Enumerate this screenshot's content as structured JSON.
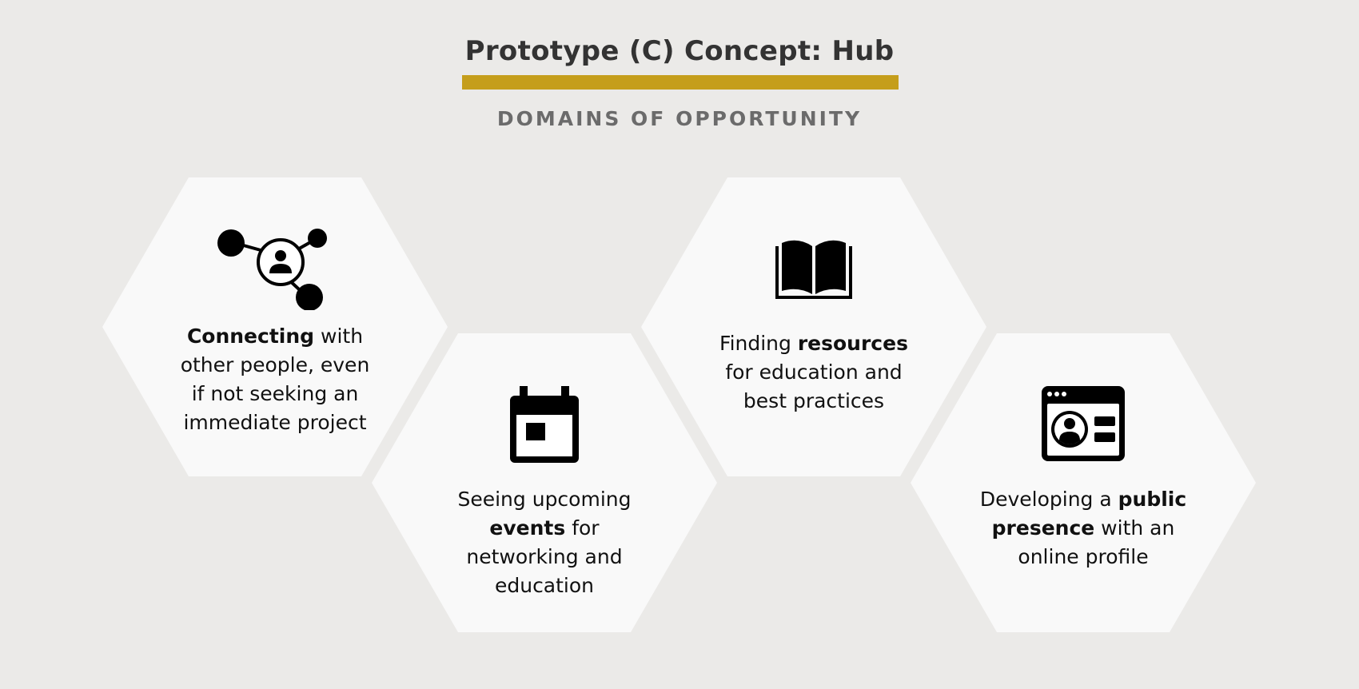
{
  "header": {
    "title": "Prototype (C) Concept: Hub",
    "subtitle": "DOMAINS OF OPPORTUNITY",
    "accent_color": "#c59e1b"
  },
  "domains": [
    {
      "icon": "network-person-icon",
      "pre": "",
      "bold": "Connecting",
      "post": " with other people, even if not seeking an immediate project"
    },
    {
      "icon": "calendar-icon",
      "pre": "Seeing upcoming ",
      "bold": "events",
      "post": " for networking and education"
    },
    {
      "icon": "open-book-icon",
      "pre": "Finding ",
      "bold": "resources",
      "post": " for education and best practices"
    },
    {
      "icon": "profile-window-icon",
      "pre": "Developing a ",
      "bold": "public presence",
      "post": " with an online profile"
    }
  ]
}
